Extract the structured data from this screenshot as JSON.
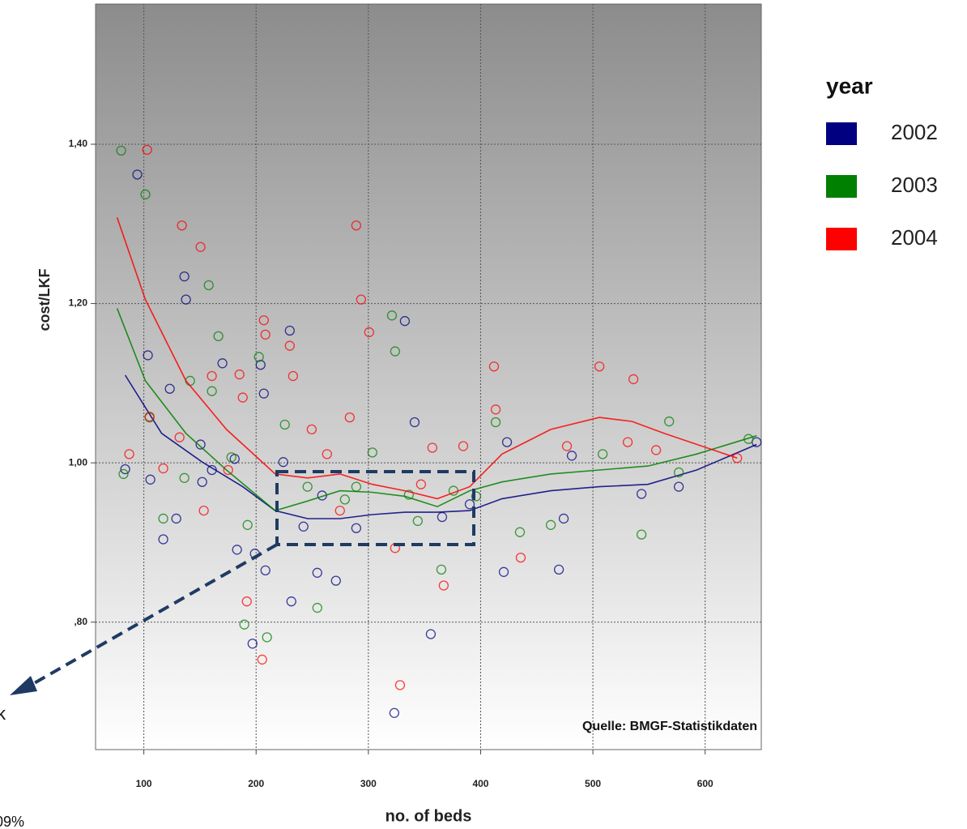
{
  "chart_data": {
    "type": "scatter",
    "title": "year",
    "x_label": "no. of beds",
    "y_label": "cost/LKF",
    "annotations": [
      "Quelle: BMGF-Statistikdaten",
      "k",
      "09%"
    ],
    "xlim": [
      57,
      650
    ],
    "ylim": [
      0.64,
      1.576
    ],
    "xticks": [
      100,
      200,
      300,
      400,
      500,
      600
    ],
    "yticks": [
      {
        "value": 0.8,
        "label": ",80"
      },
      {
        "value": 1.0,
        "label": "1,00"
      },
      {
        "value": 1.2,
        "label": "1,20"
      },
      {
        "value": 1.4,
        "label": "1,40"
      }
    ],
    "grid": true,
    "legend": "right",
    "series": [
      {
        "name": "2002",
        "color": "#000080",
        "x": [
          83.4,
          94.2,
          103.6,
          105.8,
          117.3,
          123.1,
          128.9,
          136.1,
          137.5,
          150.5,
          152.0,
          160.6,
          170.0,
          180.9,
          183.0,
          196.8,
          198.9,
          204.0,
          206.9,
          208.3,
          224.2,
          230.0,
          231.4,
          242.2,
          254.5,
          258.8,
          271.1,
          289.2,
          323.1,
          332.5,
          341.2,
          355.6,
          365.7,
          390.3,
          423.5,
          420.6,
          469.7,
          474.0,
          481.2,
          543.3,
          576.5,
          645.8
        ],
        "y": [
          0.992,
          1.362,
          1.135,
          0.979,
          0.904,
          1.093,
          0.93,
          1.234,
          1.205,
          1.023,
          0.976,
          0.991,
          1.125,
          1.005,
          0.891,
          0.773,
          0.886,
          1.123,
          1.087,
          0.865,
          1.001,
          1.166,
          0.826,
          0.92,
          0.862,
          0.959,
          0.852,
          0.918,
          0.686,
          1.178,
          1.051,
          0.785,
          0.932,
          0.948,
          1.026,
          0.863,
          0.866,
          0.93,
          1.009,
          0.961,
          0.97,
          1.026
        ],
        "fit": {
          "x": [
            83.4,
            115.9,
            152.0,
            188.1,
            217.0,
            245.8,
            274.7,
            303.6,
            332.5,
            361.4,
            390.3,
            419.1,
            462.5,
            505.8,
            549.1,
            592.4,
            645.8
          ],
          "y": [
            1.11,
            1.037,
            1.001,
            0.97,
            0.94,
            0.93,
            0.93,
            0.935,
            0.938,
            0.938,
            0.94,
            0.955,
            0.965,
            0.97,
            0.973,
            0.991,
            1.023
          ]
        }
      },
      {
        "name": "2003",
        "color": "#008000",
        "x": [
          79.8,
          81.9,
          101.4,
          105.1,
          117.3,
          136.1,
          141.2,
          157.8,
          166.4,
          160.6,
          178.0,
          189.5,
          192.4,
          202.5,
          209.7,
          225.6,
          245.8,
          254.5,
          279.1,
          289.2,
          303.6,
          321.0,
          323.8,
          336.1,
          344.0,
          365.0,
          375.8,
          396.0,
          413.4,
          435.0,
          462.5,
          508.7,
          543.3,
          567.9,
          576.5,
          638.6
        ],
        "y": [
          1.392,
          0.986,
          1.337,
          1.057,
          0.93,
          0.981,
          1.103,
          1.223,
          1.159,
          1.09,
          1.007,
          0.797,
          0.922,
          1.133,
          0.781,
          1.048,
          0.97,
          0.818,
          0.954,
          0.97,
          1.013,
          1.185,
          1.14,
          0.96,
          0.927,
          0.866,
          0.965,
          0.958,
          1.051,
          0.913,
          0.922,
          1.011,
          0.91,
          1.052,
          0.988,
          1.03
        ],
        "fit": {
          "x": [
            76.2,
            101.4,
            137.5,
            173.6,
            217.0,
            245.8,
            274.7,
            303.6,
            332.5,
            361.4,
            390.3,
            419.1,
            462.5,
            505.8,
            549.1,
            592.4,
            645.8
          ],
          "y": [
            1.194,
            1.103,
            1.037,
            0.991,
            0.94,
            0.952,
            0.965,
            0.963,
            0.958,
            0.945,
            0.965,
            0.976,
            0.986,
            0.991,
            0.996,
            1.011,
            1.034
          ]
        }
      },
      {
        "name": "2004",
        "color": "#ff0000",
        "x": [
          87.0,
          102.9,
          105.1,
          117.3,
          131.8,
          133.9,
          150.5,
          153.4,
          160.6,
          175.1,
          185.2,
          188.1,
          191.7,
          206.9,
          208.3,
          205.4,
          230.0,
          232.9,
          249.5,
          263.2,
          274.7,
          283.4,
          289.2,
          293.5,
          300.7,
          323.8,
          328.2,
          346.9,
          357.0,
          367.1,
          384.5,
          411.9,
          413.4,
          435.7,
          476.9,
          505.8,
          531.0,
          536.1,
          556.3,
          628.5
        ],
        "y": [
          1.011,
          1.393,
          1.058,
          0.993,
          1.032,
          1.298,
          1.271,
          0.94,
          1.109,
          0.991,
          1.111,
          1.082,
          0.826,
          1.179,
          1.161,
          0.753,
          1.147,
          1.109,
          1.042,
          1.011,
          0.94,
          1.057,
          1.298,
          1.205,
          1.164,
          0.893,
          0.721,
          0.973,
          1.019,
          0.846,
          1.021,
          1.121,
          1.067,
          0.881,
          1.021,
          1.121,
          1.026,
          1.105,
          1.016,
          1.006
        ],
        "fit": {
          "x": [
            76.2,
            101.4,
            137.5,
            173.6,
            217.0,
            245.8,
            274.7,
            303.6,
            332.5,
            361.4,
            390.3,
            419.1,
            462.5,
            505.8,
            534.7,
            563.5,
            628.5
          ],
          "y": [
            1.308,
            1.205,
            1.103,
            1.042,
            0.986,
            0.981,
            0.986,
            0.973,
            0.965,
            0.955,
            0.97,
            1.011,
            1.042,
            1.057,
            1.052,
            1.037,
            1.006
          ]
        }
      }
    ]
  }
}
